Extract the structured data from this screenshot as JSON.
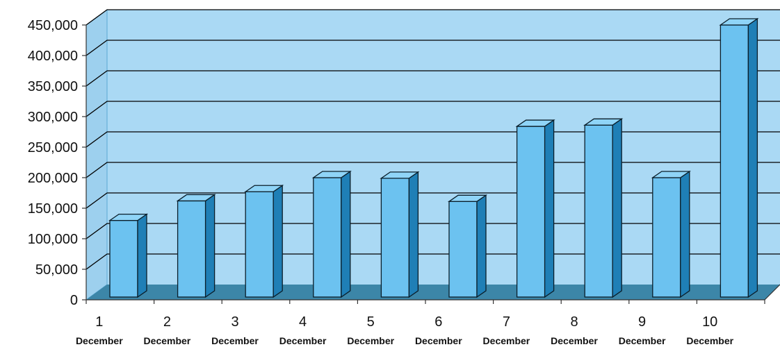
{
  "chart_data": {
    "type": "bar",
    "style": "3d-column",
    "categories": [
      {
        "day": "1",
        "month": "December"
      },
      {
        "day": "2",
        "month": "December"
      },
      {
        "day": "3",
        "month": "December"
      },
      {
        "day": "4",
        "month": "December"
      },
      {
        "day": "5",
        "month": "December"
      },
      {
        "day": "6",
        "month": "December"
      },
      {
        "day": "7",
        "month": "December"
      },
      {
        "day": "8",
        "month": "December"
      },
      {
        "day": "9",
        "month": "December"
      },
      {
        "day": "10",
        "month": "December"
      }
    ],
    "values": [
      130000,
      162000,
      177000,
      200000,
      199000,
      161000,
      284000,
      286000,
      200000,
      450000
    ],
    "yticks": [
      "0",
      "50,000",
      "100,000",
      "150,000",
      "200,000",
      "250,000",
      "300,000",
      "350,000",
      "400,000",
      "450,000"
    ],
    "ylim": [
      0,
      450000
    ],
    "grid": true,
    "legend": "none",
    "title": "",
    "xlabel": "",
    "ylabel": "",
    "colors": {
      "wall": "#aad9f4",
      "wall_left": "#9dd0ee",
      "floor": "#3c86a8",
      "bar_front": "#6cc2f0",
      "bar_top": "#8fd4f7",
      "bar_side": "#1f7fb6",
      "outline": "#0a1e2a"
    }
  }
}
